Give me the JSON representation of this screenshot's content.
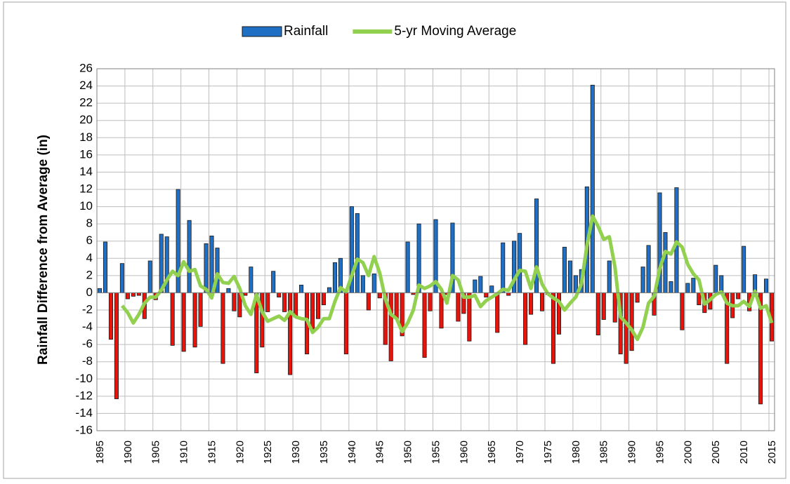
{
  "chart_data": {
    "type": "bar",
    "y_label": "Rainfall Difference from Average (in)",
    "categories": [
      "1895",
      null,
      null,
      null,
      null,
      "1900",
      null,
      null,
      null,
      null,
      "1905",
      null,
      null,
      null,
      null,
      "1910",
      null,
      null,
      null,
      null,
      "1915",
      null,
      null,
      null,
      null,
      "1920",
      null,
      null,
      null,
      null,
      "1925",
      null,
      null,
      null,
      null,
      "1930",
      null,
      null,
      null,
      null,
      "1935",
      null,
      null,
      null,
      null,
      "1940",
      null,
      null,
      null,
      null,
      "1945",
      null,
      null,
      null,
      null,
      "1950",
      null,
      null,
      null,
      null,
      "1955",
      null,
      null,
      null,
      null,
      "1960",
      null,
      null,
      null,
      null,
      "1965",
      null,
      null,
      null,
      null,
      "1970",
      null,
      null,
      null,
      null,
      "1975",
      null,
      null,
      null,
      null,
      "1980",
      null,
      null,
      null,
      null,
      "1985",
      null,
      null,
      null,
      null,
      "1990",
      null,
      null,
      null,
      null,
      "1995",
      null,
      null,
      null,
      null,
      "2000",
      null,
      null,
      null,
      null,
      "2005",
      null,
      null,
      null,
      null,
      "2010",
      null,
      null,
      null,
      null,
      "2015"
    ],
    "series": [
      {
        "name": "Rainfall",
        "type": "bar",
        "color": "#1f6fc5",
        "negative_color": "#e8140c",
        "values": [
          0.5,
          5.9,
          -5.4,
          -12.3,
          3.4,
          -0.7,
          -0.4,
          -0.3,
          -3.0,
          3.7,
          -0.8,
          6.8,
          6.5,
          -6.1,
          12.0,
          -6.8,
          8.4,
          -6.3,
          -3.9,
          5.7,
          6.6,
          5.2,
          -8.2,
          0.5,
          -2.1,
          -2.8,
          -0.3,
          3.0,
          -9.3,
          -6.3,
          -2.2,
          2.5,
          -0.5,
          -2.2,
          -9.5,
          -2.7,
          0.9,
          -7.1,
          -4.2,
          -3.0,
          -1.4,
          0.6,
          3.5,
          4.0,
          -7.1,
          10.0,
          9.2,
          2.0,
          -2.0,
          2.2,
          -0.6,
          -6.0,
          -7.9,
          -3.0,
          -5.0,
          5.9,
          -0.2,
          8.0,
          -7.5,
          -2.1,
          8.5,
          -4.1,
          -0.2,
          8.1,
          -3.3,
          -2.4,
          -5.6,
          1.5,
          1.9,
          -0.5,
          0.8,
          -4.6,
          5.8,
          -0.3,
          6.0,
          6.9,
          -6.0,
          -2.5,
          10.9,
          -2.1,
          -0.2,
          -8.2,
          -4.8,
          5.3,
          3.7,
          2.0,
          2.7,
          12.3,
          24.1,
          -4.9,
          -3.1,
          3.7,
          -3.4,
          -7.1,
          -8.2,
          -6.7,
          -1.1,
          3.0,
          5.5,
          -2.6,
          11.6,
          7.0,
          1.3,
          12.2,
          -4.3,
          1.1,
          1.7,
          -1.4,
          -2.3,
          -1.9,
          3.2,
          2.0,
          -8.2,
          -2.9,
          -0.7,
          5.4,
          -2.1,
          2.1,
          -12.9,
          1.6,
          -5.6
        ]
      },
      {
        "name": "5-yr Moving Average",
        "type": "line",
        "color": "#92d050",
        "values": [
          null,
          null,
          null,
          null,
          -1.5,
          -2.3,
          -3.5,
          -2.5,
          -1.2,
          -0.5,
          -0.5,
          0.3,
          1.5,
          2.5,
          2.0,
          3.6,
          2.5,
          2.7,
          0.8,
          0.4,
          -0.6,
          2.2,
          1.2,
          1.1,
          1.9,
          0.5,
          -1.5,
          -2.5,
          -0.2,
          -2.2,
          -3.3,
          -3.0,
          -2.7,
          -3.2,
          -2.2,
          -2.8,
          -3.0,
          -3.1,
          -4.6,
          -4.0,
          -3.0,
          -3.0,
          -1.0,
          0.6,
          0.1,
          2.0,
          3.9,
          3.5,
          2.0,
          4.2,
          2.3,
          -0.7,
          -2.5,
          -3.0,
          -4.5,
          -3.5,
          -2.0,
          0.9,
          0.5,
          0.8,
          1.3,
          0.4,
          -1.2,
          2.0,
          1.5,
          -0.5,
          -0.5,
          -0.3,
          -1.6,
          -0.9,
          -0.5,
          -0.1,
          0.4,
          0.3,
          1.5,
          2.6,
          2.5,
          0.5,
          3.0,
          1.0,
          -0.1,
          -0.6,
          -1.0,
          -2.0,
          -1.2,
          -0.5,
          1.0,
          5.5,
          8.9,
          7.7,
          6.2,
          6.5,
          3.0,
          -2.8,
          -3.5,
          -4.3,
          -5.4,
          -4.0,
          -1.2,
          -0.4,
          2.8,
          4.8,
          4.5,
          5.9,
          5.3,
          3.3,
          2.2,
          1.5,
          -1.3,
          -0.8,
          -0.2,
          0.1,
          -1.2,
          -1.5,
          -1.5,
          -1.0,
          -1.6,
          0.2,
          -1.8,
          -1.5,
          -3.5
        ]
      }
    ],
    "ylim": [
      -16,
      26
    ],
    "yticks": [
      -16,
      -14,
      -12,
      -10,
      -8,
      -6,
      -4,
      -2,
      0,
      2,
      4,
      6,
      8,
      10,
      12,
      14,
      16,
      18,
      20,
      22,
      24,
      26
    ],
    "grid": true,
    "legend": "top"
  }
}
